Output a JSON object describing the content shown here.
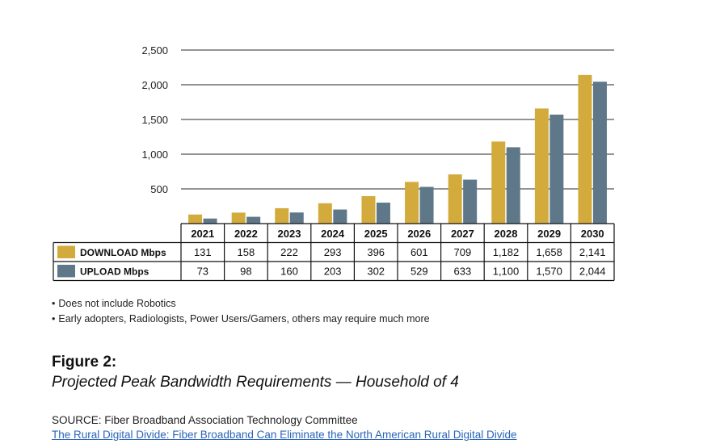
{
  "chart_data": {
    "type": "bar",
    "categories": [
      "2021",
      "2022",
      "2023",
      "2024",
      "2025",
      "2026",
      "2027",
      "2028",
      "2029",
      "2030"
    ],
    "series": [
      {
        "name": "DOWNLOAD Mbps",
        "color": "#d3ab3c",
        "values": [
          131,
          158,
          222,
          293,
          396,
          601,
          709,
          1182,
          1658,
          2141
        ],
        "labels": [
          "131",
          "158",
          "222",
          "293",
          "396",
          "601",
          "709",
          "1,182",
          "1,658",
          "2,141"
        ]
      },
      {
        "name": "UPLOAD Mbps",
        "color": "#5f7889",
        "values": [
          73,
          98,
          160,
          203,
          302,
          529,
          633,
          1100,
          1570,
          2044
        ],
        "labels": [
          "73",
          "98",
          "160",
          "203",
          "302",
          "529",
          "633",
          "1,100",
          "1,570",
          "2,044"
        ]
      }
    ],
    "ylim": [
      0,
      2500
    ],
    "yticks": [
      500,
      1000,
      1500,
      2000,
      2500
    ],
    "ytick_labels": [
      "500",
      "1,000",
      "1,500",
      "2,000",
      "2,500"
    ],
    "grid": true,
    "legend": "table-left"
  },
  "notes": [
    "Does not include Robotics",
    "Early adopters, Radiologists, Power Users/Gamers, others may require much more"
  ],
  "figure": {
    "label": "Figure 2:",
    "caption": "Projected Peak Bandwidth Requirements — Household of 4"
  },
  "source": {
    "label": "SOURCE: Fiber Broadband Association Technology Committee",
    "link": "The Rural Digital Divide: Fiber Broadband Can Eliminate the North American Rural Digital Divide"
  }
}
